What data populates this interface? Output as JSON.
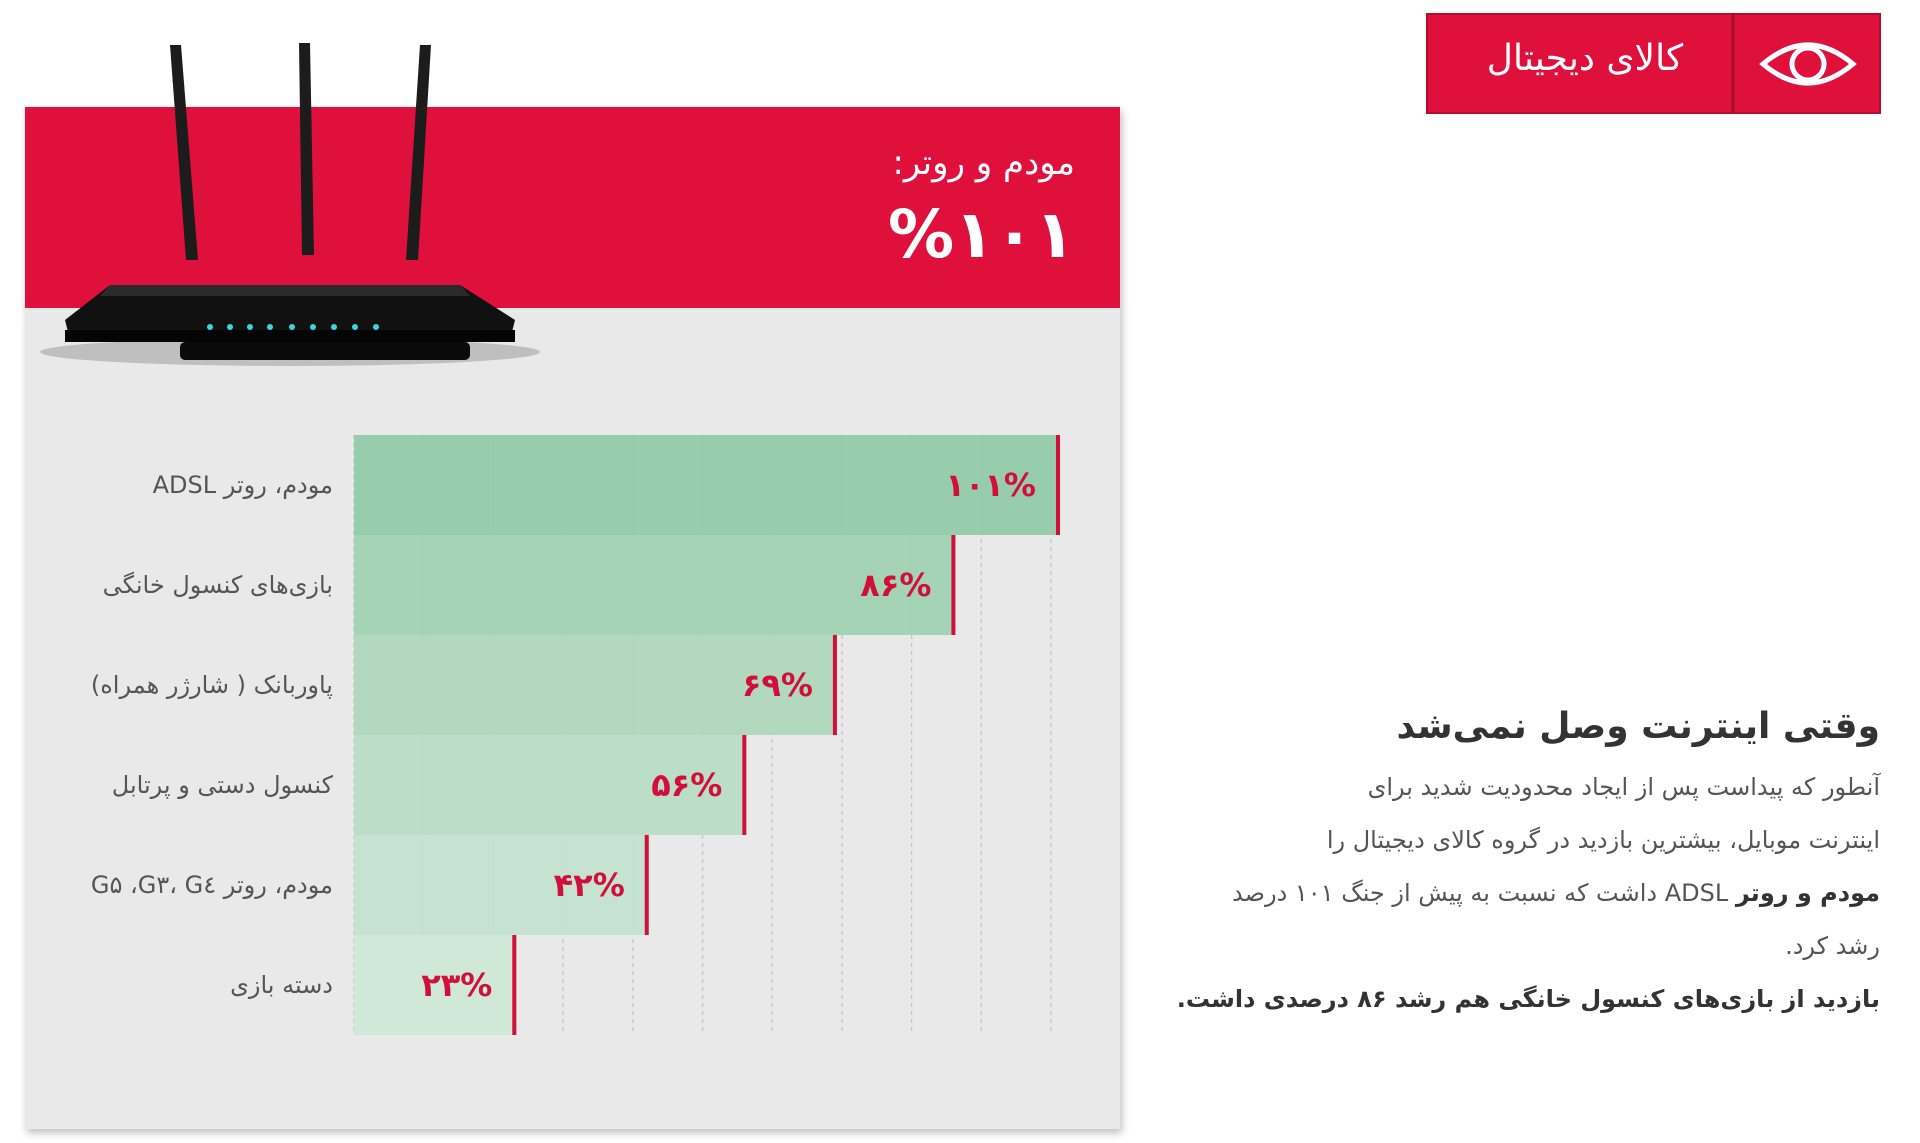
{
  "badge": {
    "text": "کالای دیجیتال"
  },
  "header": {
    "label": "مودم و روتر:",
    "value_label": "%۱۰۱"
  },
  "chart_data": {
    "type": "bar",
    "orientation": "horizontal",
    "categories": [
      "مودم، روتر ADSL",
      "بازی‌های کنسول خانگی",
      "پاوربانک ( شارژر همراه)",
      "کنسول دستی و پرتابل",
      "مودم، روتر G۳، G٤، G۵",
      "دسته بازی"
    ],
    "values": [
      101,
      86,
      69,
      56,
      42,
      23
    ],
    "value_labels": [
      "۱۰۱%",
      "۸۶%",
      "۶۹%",
      "۵۶%",
      "۴۲%",
      "۲۳%"
    ],
    "colors": [
      "#8fc9a7",
      "#9ed0b1",
      "#acd7bc",
      "#b7dcc5",
      "#c2e1cd",
      "#cce7d5"
    ],
    "end_color": "#d0103a",
    "xlim": [
      0,
      100
    ],
    "xticks": [
      0,
      10,
      20,
      30,
      40,
      50,
      60,
      70,
      80,
      90,
      100
    ],
    "grid": true
  },
  "article": {
    "title": "وقتی اینترنت وصل نمی‌شد",
    "lines": [
      [
        {
          "text": "آنطور که پیداست پس از ایجاد محدودیت شدید برای",
          "bold": false
        }
      ],
      [
        {
          "text": "اینترنت موبایل، بیشترین بازدید در گروه کالای دیجیتال را",
          "bold": false
        }
      ],
      [
        {
          "text": "مودم و روتر",
          "bold": true
        },
        {
          "text": " ADSL داشت که نسبت به پیش از جنگ ۱۰۱ درصد",
          "bold": false
        }
      ],
      [
        {
          "text": "رشد کرد.",
          "bold": false
        }
      ],
      [
        {
          "text": "بازدید از بازی‌های کنسول خانگی هم رشد ۸۶ درصدی داشت.",
          "bold": true
        }
      ]
    ]
  }
}
